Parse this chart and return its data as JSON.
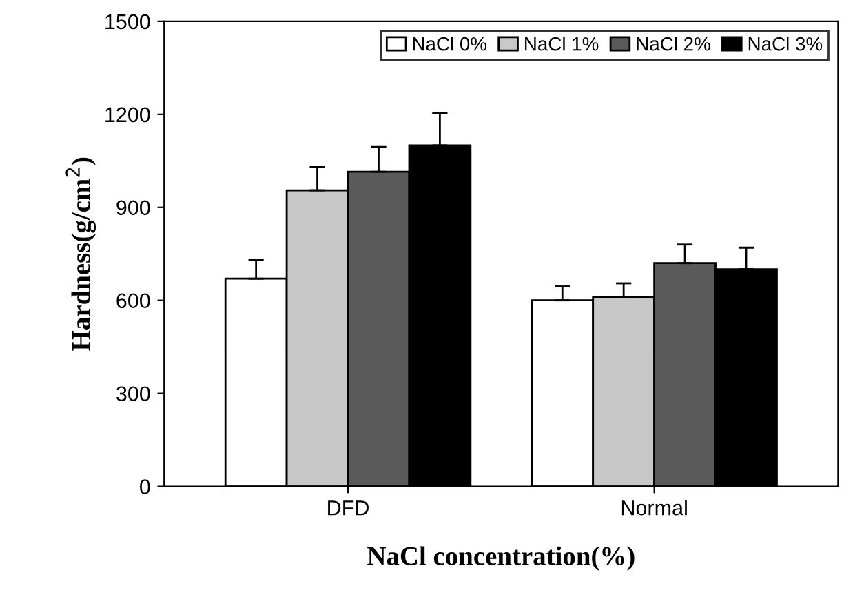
{
  "chart_data": {
    "type": "bar",
    "xlabel": "NaCl concentration(%)",
    "ylabel": "Hardness(g/cm$^{2}$)",
    "categories": [
      "DFD",
      "Normal"
    ],
    "series": [
      {
        "name": "NaCl 0%",
        "color": "#ffffff",
        "values": [
          670,
          600
        ],
        "errors": [
          [
            670,
            730
          ],
          [
            600,
            645
          ]
        ]
      },
      {
        "name": "NaCl 1%",
        "color": "#c8c8c8",
        "values": [
          955,
          610
        ],
        "errors": [
          [
            955,
            1030
          ],
          [
            610,
            655
          ]
        ]
      },
      {
        "name": "NaCl 2%",
        "color": "#5a5a5a",
        "values": [
          1015,
          720
        ],
        "errors": [
          [
            1015,
            1095
          ],
          [
            720,
            780
          ]
        ]
      },
      {
        "name": "NaCl 3%",
        "color": "#000000",
        "values": [
          1100,
          700
        ],
        "errors": [
          [
            1100,
            1205
          ],
          [
            700,
            770
          ]
        ]
      }
    ],
    "ylim": [
      0,
      1500
    ],
    "yticks": [
      0,
      300,
      600,
      900,
      1200,
      1500
    ],
    "grid": false,
    "legend": "top right"
  }
}
